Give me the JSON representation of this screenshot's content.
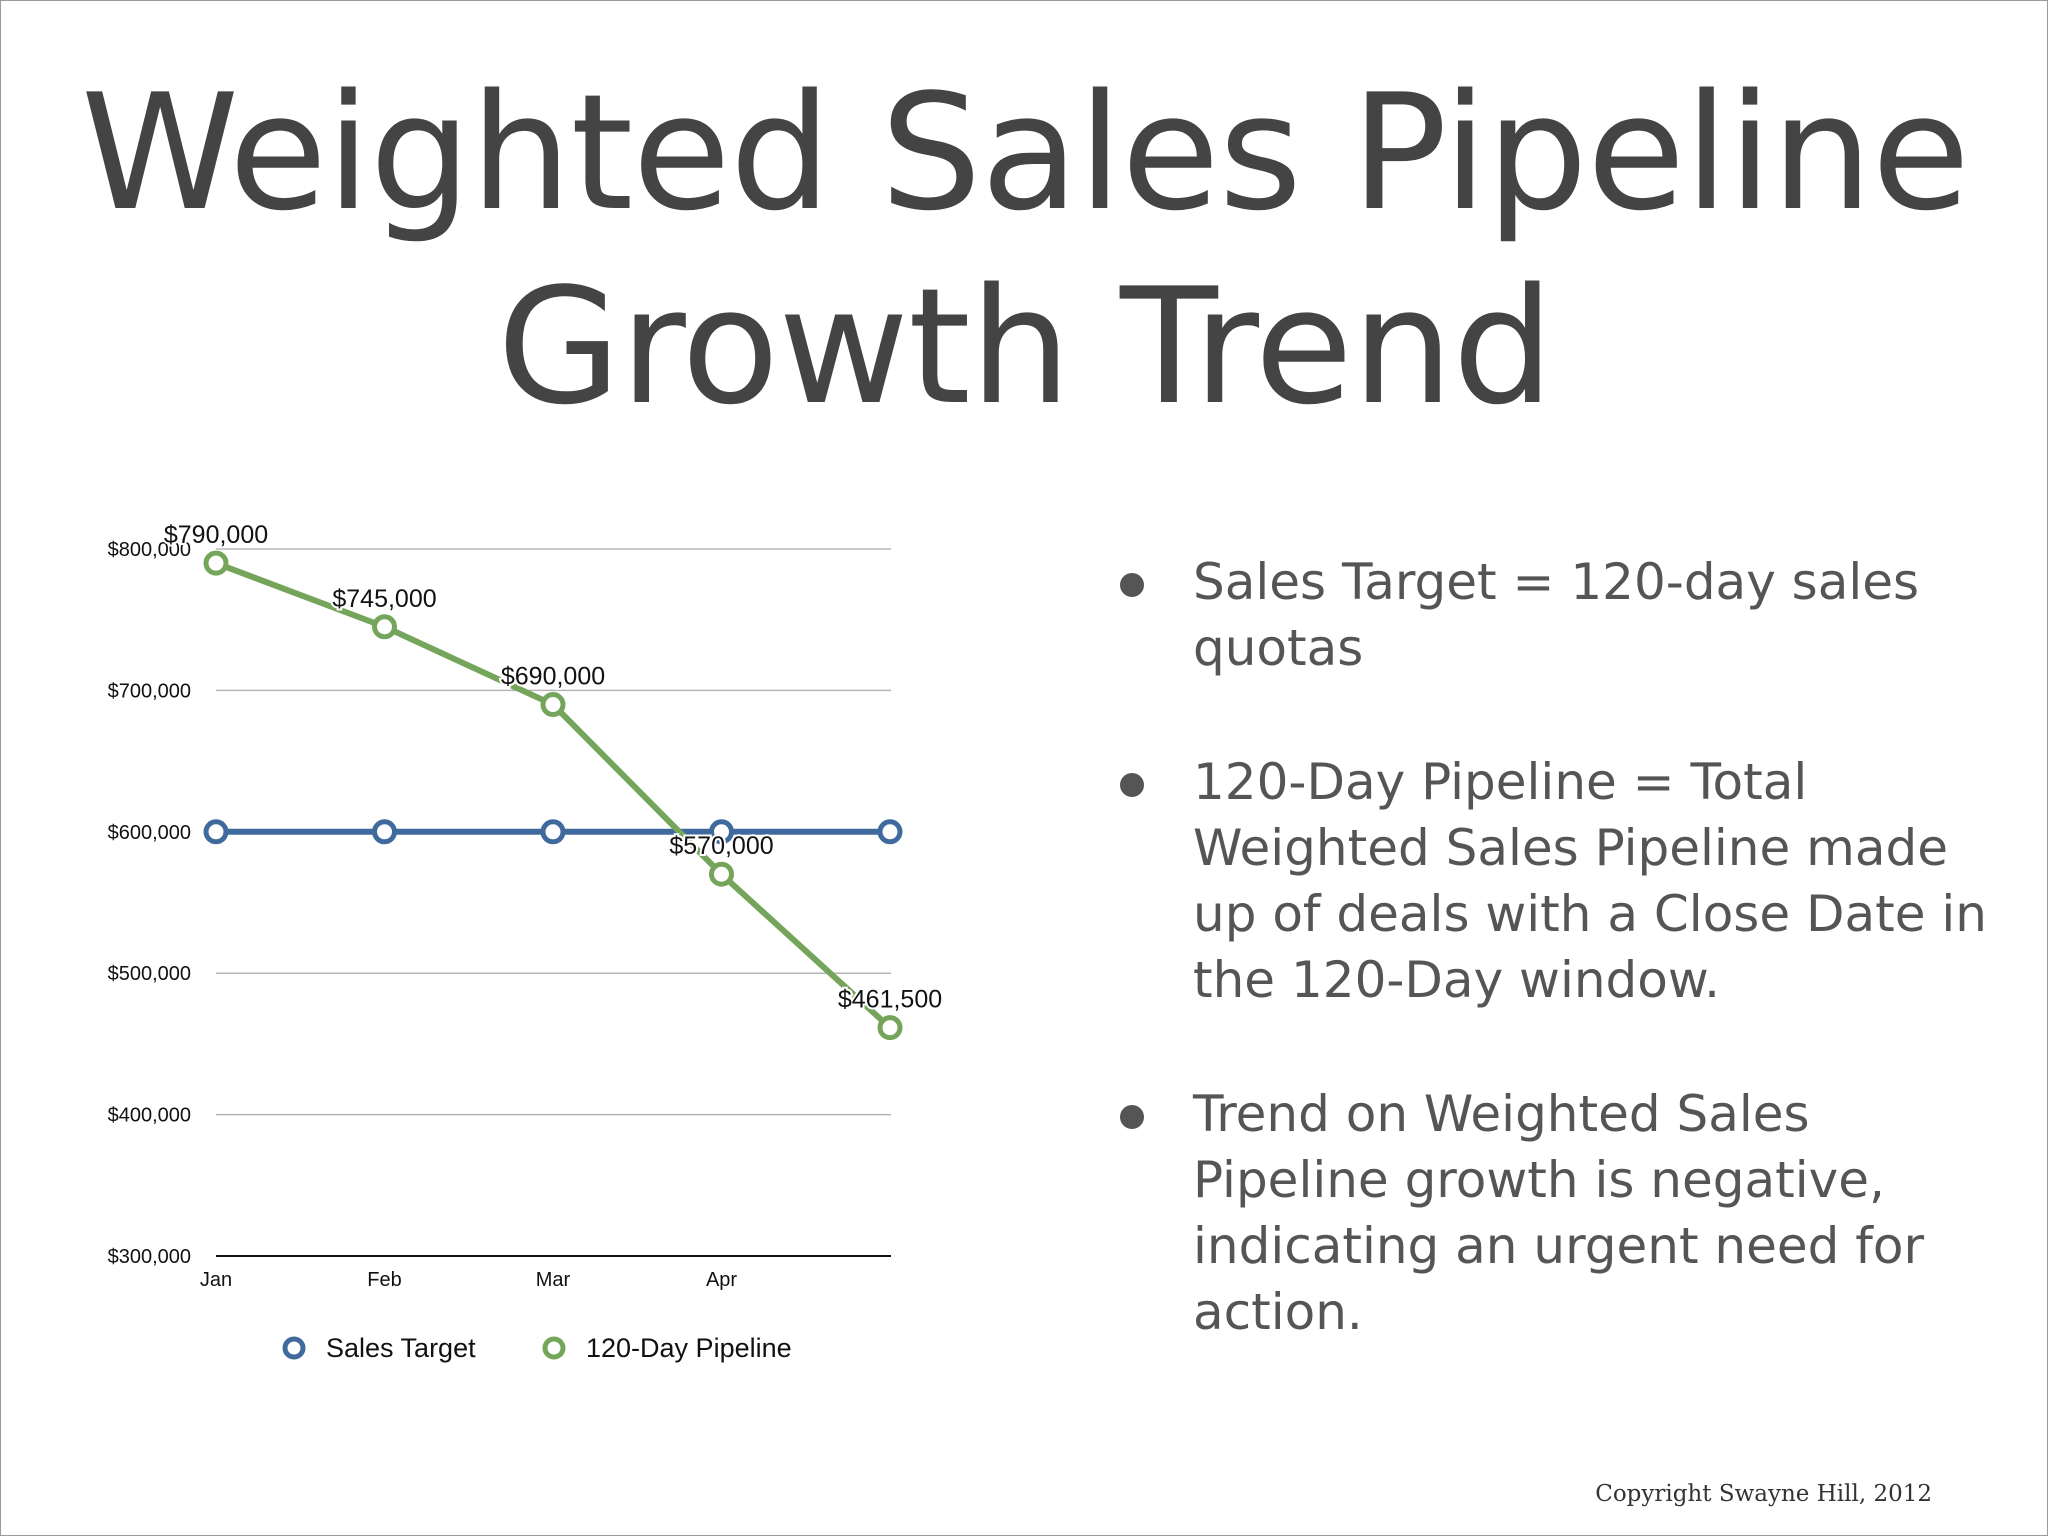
{
  "slide": {
    "title_line1": "Weighted Sales Pipeline",
    "title_line2": "Growth Trend",
    "bullets": [
      "Sales Target = 120-day sales quotas",
      "120-Day Pipeline = Total Weighted Sales Pipeline made up of deals with a Close Date in the 120-Day window.",
      "Trend on Weighted Sales Pipeline growth is negative, indicating an urgent need for action."
    ],
    "copyright": "Copyright Swayne Hill, 2012"
  },
  "chart_data": {
    "type": "line",
    "title": "",
    "xlabel": "",
    "ylabel": "",
    "categories": [
      "Jan",
      "Feb",
      "Mar",
      "Apr",
      ""
    ],
    "ylim": [
      300000,
      800000
    ],
    "yticks": [
      300000,
      400000,
      500000,
      600000,
      700000,
      800000
    ],
    "ytick_labels": [
      "$300,000",
      "$400,000",
      "$500,000",
      "$600,000",
      "$700,000",
      "$800,000"
    ],
    "grid": true,
    "legend": "bottom",
    "series": [
      {
        "name": "Sales Target",
        "color": "#3f6a9e",
        "values": [
          600000,
          600000,
          600000,
          600000,
          600000
        ],
        "labels": []
      },
      {
        "name": "120-Day Pipeline",
        "color": "#74a55a",
        "values": [
          790000,
          745000,
          690000,
          570000,
          461500
        ],
        "labels": [
          "$790,000",
          "$745,000",
          "$690,000",
          "$570,000",
          "$461,500"
        ]
      }
    ]
  }
}
